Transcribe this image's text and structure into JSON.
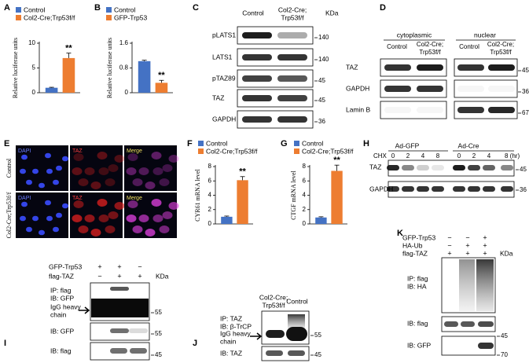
{
  "chart_data": [
    {
      "panel": "A",
      "type": "bar",
      "ylabel": "Relative luciferase units",
      "ylim": [
        0,
        10
      ],
      "yticks": [
        0,
        5,
        10
      ],
      "annotations": [
        "**"
      ],
      "series": [
        {
          "name": "Control",
          "color": "#4472c4",
          "values": [
            1.0
          ],
          "errors": [
            0.1
          ]
        },
        {
          "name": "Col2-Cre;Trp53f/f",
          "color": "#ed7d31",
          "values": [
            7.0
          ],
          "errors": [
            1.0
          ]
        }
      ]
    },
    {
      "panel": "B",
      "type": "bar",
      "ylabel": "Relative luciferase units",
      "ylim": [
        0,
        1.6
      ],
      "yticks": [
        0,
        0.8,
        1.6
      ],
      "annotations": [
        "**"
      ],
      "series": [
        {
          "name": "Control",
          "color": "#4472c4",
          "values": [
            1.02
          ],
          "errors": [
            0.03
          ]
        },
        {
          "name": "GFP-Trp53",
          "color": "#ed7d31",
          "values": [
            0.32
          ],
          "errors": [
            0.08
          ]
        }
      ]
    },
    {
      "panel": "F",
      "type": "bar",
      "ylabel": "CYR61 mRNA level",
      "ylim": [
        0,
        8
      ],
      "yticks": [
        0,
        2,
        4,
        6,
        8
      ],
      "annotations": [
        "**"
      ],
      "series": [
        {
          "name": "Control",
          "color": "#4472c4",
          "values": [
            1.0
          ],
          "errors": [
            0.1
          ]
        },
        {
          "name": "Col2-Cre;Trp53f/f",
          "color": "#ed7d31",
          "values": [
            6.1
          ],
          "errors": [
            0.5
          ]
        }
      ]
    },
    {
      "panel": "G",
      "type": "bar",
      "ylabel": "CTGF mRNA level",
      "ylim": [
        0,
        8
      ],
      "yticks": [
        0,
        2,
        4,
        6,
        8
      ],
      "annotations": [
        "**"
      ],
      "series": [
        {
          "name": "Control",
          "color": "#4472c4",
          "values": [
            0.9
          ],
          "errors": [
            0.1
          ]
        },
        {
          "name": "Col2-Cre;Trp53f/f",
          "color": "#ed7d31",
          "values": [
            7.4
          ],
          "errors": [
            0.8
          ]
        }
      ]
    }
  ],
  "blots": {
    "C": {
      "panel": "C",
      "columns": [
        "Control",
        "Col2-Cre;",
        "Trp53f/f"
      ],
      "unit": "KDa",
      "rows": [
        "pLATS1",
        "LATS1",
        "pTAZ89",
        "TAZ",
        "GAPDH"
      ],
      "markers": [
        140,
        140,
        45,
        45,
        36
      ]
    },
    "D": {
      "panel": "D",
      "groups": [
        "cytoplasmic",
        "nuclear"
      ],
      "columns": [
        "Control",
        "Col2-Cre;",
        "Trp53f/f",
        "Control",
        "Col2-Cre;",
        "Trp53f/f"
      ],
      "rows": [
        "TAZ",
        "GAPDH",
        "Lamin B"
      ],
      "markers": [
        45,
        36,
        67
      ]
    },
    "E": {
      "panel": "E",
      "rows": [
        "Control",
        "Col2-Cre;Trp53f/f"
      ],
      "channels": [
        "DAPI",
        "TAZ",
        "Merge"
      ]
    },
    "H": {
      "panel": "H",
      "groups": [
        "Ad-GFP",
        "Ad-Cre"
      ],
      "treatment": "CHX",
      "timepoints": [
        "0",
        "2",
        "4",
        "8",
        "0",
        "2",
        "4",
        "8 (hr)"
      ],
      "rows": [
        "TAZ",
        "GAPDH"
      ],
      "markers": [
        45,
        36
      ]
    },
    "I": {
      "panel": "I",
      "conditions": [
        {
          "name": "GFP-Trp53",
          "signs": [
            "+",
            "+",
            "−"
          ]
        },
        {
          "name": "flag-TAZ",
          "signs": [
            "−",
            "+",
            "+"
          ]
        }
      ],
      "unit": "KDa",
      "rows": [
        "IP: flag",
        "IB: GFP",
        "IgG heavy",
        "chain",
        "IB: GFP",
        "IB: flag"
      ],
      "markers": [
        55,
        55,
        45
      ]
    },
    "J": {
      "panel": "J",
      "columns": [
        "Col2-Cre;",
        "Trp53f/f",
        "Control"
      ],
      "rows": [
        "IP: TAZ",
        "IB: β-TrCP",
        "IgG heavy",
        "chain",
        "IB: TAZ"
      ],
      "markers": [
        55,
        45
      ]
    },
    "K": {
      "panel": "K",
      "conditions": [
        {
          "name": "GFP-Trp53",
          "signs": [
            "−",
            "−",
            "+"
          ]
        },
        {
          "name": "HA-Ub",
          "signs": [
            "−",
            "+",
            "+"
          ]
        },
        {
          "name": "flag-TAZ",
          "signs": [
            "+",
            "+",
            "+"
          ]
        }
      ],
      "unit": "KDa",
      "rows": [
        "IP: flag",
        "IB: HA",
        "IB: flag",
        "IB: GFP"
      ],
      "markers": [
        45,
        70
      ]
    }
  }
}
